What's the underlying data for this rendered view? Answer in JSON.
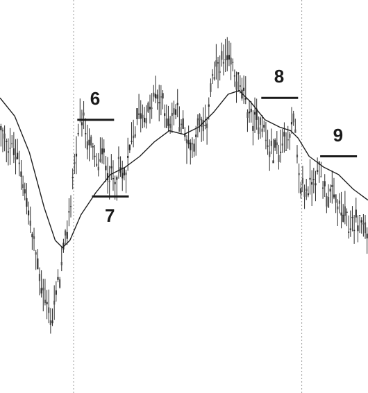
{
  "chart_data": {
    "type": "candlestick",
    "title": "",
    "xlabel": "",
    "ylabel": "",
    "grid": false,
    "legend": "none",
    "ylim": [
      0,
      100
    ],
    "xlim": [
      0,
      100
    ],
    "colors": {
      "price": "#2a2a2a",
      "moving_average": "#1e1e1e",
      "divider": "#9a9a9a",
      "marker": "#1a1a1a"
    },
    "price_path": [
      [
        0,
        67
      ],
      [
        3,
        64
      ],
      [
        6,
        57
      ],
      [
        9,
        37
      ],
      [
        12,
        23
      ],
      [
        14,
        16
      ],
      [
        16,
        27
      ],
      [
        18,
        38
      ],
      [
        20,
        57
      ],
      [
        22,
        71
      ],
      [
        24,
        66
      ],
      [
        26,
        58
      ],
      [
        28,
        62
      ],
      [
        30,
        55
      ],
      [
        32,
        57
      ],
      [
        34,
        55
      ],
      [
        36,
        66
      ],
      [
        38,
        74
      ],
      [
        40,
        72
      ],
      [
        42,
        77
      ],
      [
        44,
        76
      ],
      [
        46,
        70
      ],
      [
        48,
        74
      ],
      [
        50,
        68
      ],
      [
        52,
        63
      ],
      [
        54,
        70
      ],
      [
        56,
        68
      ],
      [
        57,
        79
      ],
      [
        59,
        85
      ],
      [
        61,
        87
      ],
      [
        63,
        86
      ],
      [
        65,
        80
      ],
      [
        67,
        75
      ],
      [
        69,
        70
      ],
      [
        71,
        72
      ],
      [
        73,
        63
      ],
      [
        76,
        63
      ],
      [
        78,
        67
      ],
      [
        80,
        71
      ],
      [
        81,
        55
      ],
      [
        83,
        51
      ],
      [
        85,
        55
      ],
      [
        87,
        57
      ],
      [
        89,
        50
      ],
      [
        91,
        49
      ],
      [
        93,
        45
      ],
      [
        95,
        42
      ],
      [
        97,
        44
      ],
      [
        100,
        40
      ]
    ],
    "moving_average": [
      [
        0,
        77
      ],
      [
        4,
        72
      ],
      [
        8,
        62
      ],
      [
        12,
        47
      ],
      [
        15,
        38
      ],
      [
        17,
        36
      ],
      [
        19,
        38
      ],
      [
        22,
        45
      ],
      [
        26,
        51
      ],
      [
        30,
        56
      ],
      [
        34,
        58
      ],
      [
        38,
        61
      ],
      [
        42,
        65
      ],
      [
        46,
        68
      ],
      [
        50,
        67
      ],
      [
        54,
        69
      ],
      [
        58,
        73
      ],
      [
        62,
        78
      ],
      [
        65,
        79
      ],
      [
        68,
        76
      ],
      [
        72,
        71
      ],
      [
        76,
        69
      ],
      [
        79,
        68
      ],
      [
        81,
        66
      ],
      [
        84,
        61
      ],
      [
        88,
        58
      ],
      [
        92,
        56
      ],
      [
        96,
        52
      ],
      [
        100,
        49
      ]
    ],
    "dividers_x": [
      20,
      82
    ],
    "annotations": [
      {
        "label": "6",
        "x": 26,
        "y": 71
      },
      {
        "label": "7",
        "x": 30,
        "y": 50
      },
      {
        "label": "8",
        "x": 76,
        "y": 77
      },
      {
        "label": "9",
        "x": 92,
        "y": 61
      }
    ]
  }
}
